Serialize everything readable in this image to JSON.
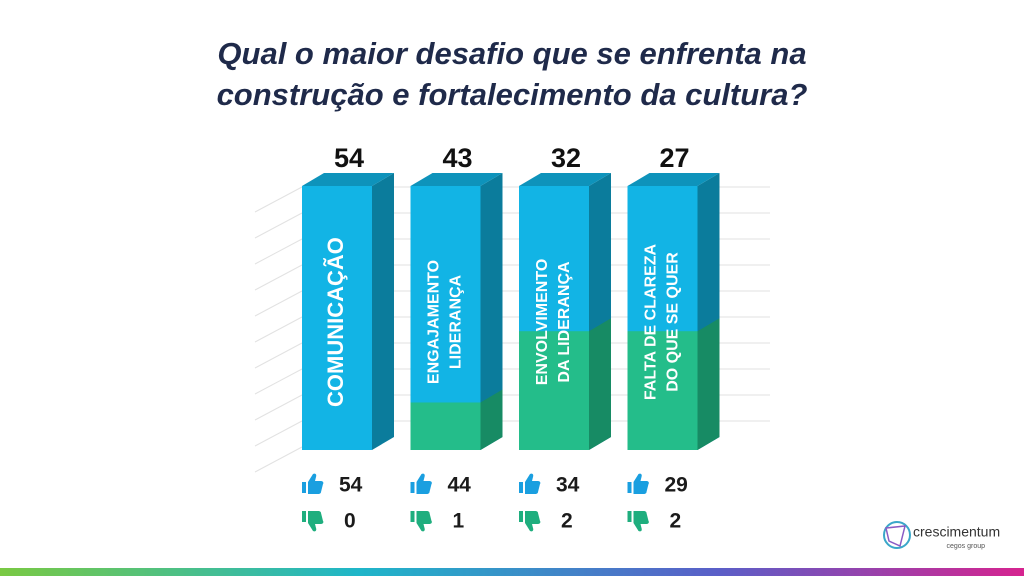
{
  "slide_title": [
    "Qual o maior desafio que se enfrenta na",
    "construção e fortalecimento da cultura?"
  ],
  "chart_data": {
    "type": "bar3d",
    "categories": [
      [
        "COMUNICAÇÃO"
      ],
      [
        "ENGAJAMENTO",
        "LIDERANÇA"
      ],
      [
        "ENVOLVIMENTO",
        "DA LIDERANÇA"
      ],
      [
        "FALTA DE CLAREZA",
        "DO QUE SE QUER"
      ]
    ],
    "values": [
      54,
      43,
      32,
      27
    ],
    "likes": [
      54,
      44,
      34,
      29
    ],
    "dislikes": [
      0,
      1,
      2,
      2
    ]
  },
  "logo": {
    "name": "crescimentum",
    "tagline": "cegos group"
  }
}
